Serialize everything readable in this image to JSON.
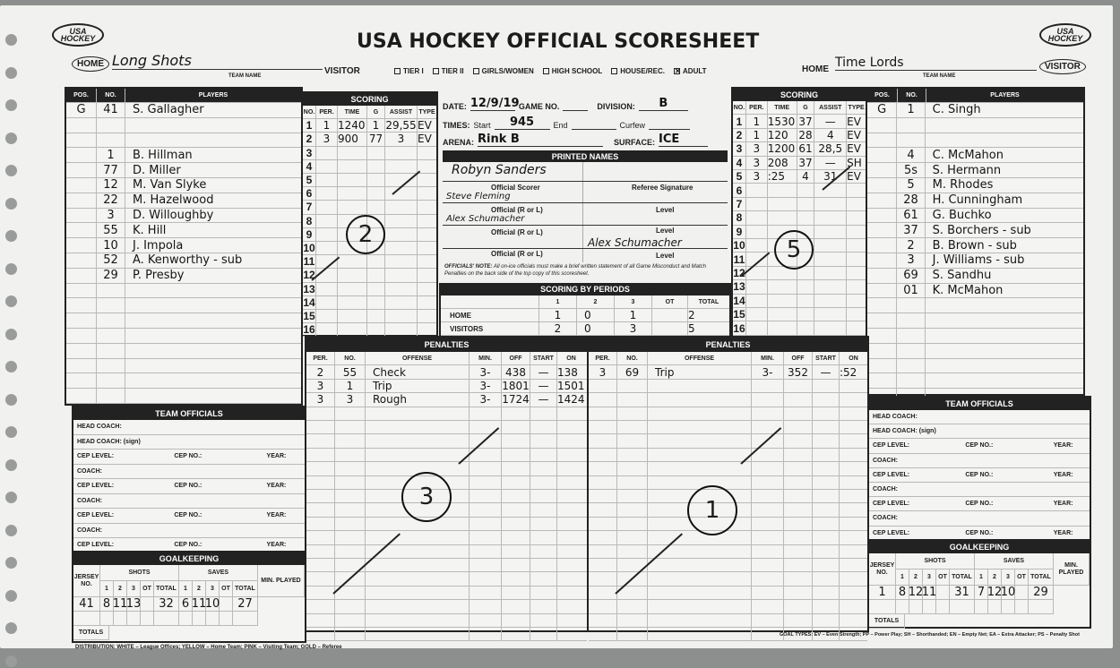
{
  "header": {
    "title": "USA HOCKEY OFFICIAL SCORESHEET",
    "logo": "USA HOCKEY",
    "home_label": "HOME",
    "visitor_label": "VISITOR",
    "team_name_label": "TEAM NAME",
    "left_team_name": "Long Shots",
    "right_team_name": "Time Lords",
    "left_circled": "HOME",
    "right_circled": "VISITOR",
    "checkboxes": [
      {
        "label": "TIER I",
        "checked": false
      },
      {
        "label": "TIER II",
        "checked": false
      },
      {
        "label": "GIRLS/WOMEN",
        "checked": false
      },
      {
        "label": "HIGH SCHOOL",
        "checked": false
      },
      {
        "label": "HOUSE/REC.",
        "checked": false
      },
      {
        "label": "ADULT",
        "checked": true
      }
    ]
  },
  "game_info": {
    "date_label": "DATE:",
    "date": "12/9/19",
    "game_no_label": "GAME NO.",
    "game_no": "",
    "division_label": "DIVISION:",
    "division": "B",
    "times_label": "TIMES:",
    "start_label": "Start",
    "start": "945",
    "end_label": "End",
    "end": "",
    "curfew_label": "Curfew",
    "curfew": "",
    "arena_label": "ARENA:",
    "arena": "Rink B",
    "surface_label": "SURFACE:",
    "surface": "ICE"
  },
  "printed_names": {
    "title": "PRINTED NAMES",
    "official_scorer_label": "Official Scorer",
    "official_scorer": "Robyn Sanders",
    "referee_signature_label": "Referee Signature",
    "official_label": "Official (R or L)",
    "level_label": "Level",
    "officials": [
      "Steve Fleming",
      "Alex Schumacher",
      ""
    ],
    "signature": "Alex Schumacher",
    "note_label": "OFFICIALS' NOTE:",
    "note": "All on-ice officials must make a brief written statement of all Game Misconduct and Match Penalties on the back side of the top copy of this scoresheet."
  },
  "scoring_by_periods": {
    "title": "SCORING BY PERIODS",
    "columns": [
      "",
      "1",
      "2",
      "3",
      "OT",
      "TOTAL"
    ],
    "rows": [
      [
        "HOME",
        "1",
        "0",
        "1",
        "",
        "2"
      ],
      [
        "VISITORS",
        "2",
        "0",
        "3",
        "",
        "5"
      ]
    ]
  },
  "players_headers": [
    "POS.",
    "NO.",
    "PLAYERS"
  ],
  "scoring_headers": [
    "NO.",
    "PER.",
    "TIME",
    "G",
    "ASSIST",
    "TYPE"
  ],
  "penalty_headers": [
    "PER.",
    "NO.",
    "OFFENSE",
    "MIN.",
    "OFF",
    "START",
    "ON"
  ],
  "scoring_title": "SCORING",
  "penalties_title": "PENALTIES",
  "team_officials_title": "TEAM OFFICIALS",
  "goalkeeping_title": "GOALKEEPING",
  "team_officials_rows": [
    [
      "HEAD COACH:"
    ],
    [
      "HEAD COACH: (sign)"
    ],
    [
      "CEP LEVEL:",
      "CEP NO.:",
      "YEAR:"
    ],
    [
      "COACH:"
    ],
    [
      "CEP LEVEL:",
      "CEP NO.:",
      "YEAR:"
    ],
    [
      "COACH:"
    ],
    [
      "CEP LEVEL:",
      "CEP NO.:",
      "YEAR:"
    ],
    [
      "COACH:"
    ],
    [
      "CEP LEVEL:",
      "CEP NO.:",
      "YEAR:"
    ]
  ],
  "goalkeeping_labels": {
    "jersey": "JERSEY NO.",
    "shots": "SHOTS",
    "saves": "SAVES",
    "min_played": "MIN. PLAYED",
    "periods": [
      "1",
      "2",
      "3",
      "OT",
      "TOTAL"
    ],
    "totals": "TOTALS"
  },
  "home": {
    "players": [
      [
        "G",
        "41",
        "S. Gallagher"
      ],
      [
        "",
        "",
        ""
      ],
      [
        "",
        "",
        ""
      ],
      [
        "",
        "1",
        "B. Hillman"
      ],
      [
        "",
        "77",
        "D. Miller"
      ],
      [
        "",
        "12",
        "M. Van Slyke"
      ],
      [
        "",
        "22",
        "M. Hazelwood"
      ],
      [
        "",
        "3",
        "D. Willoughby"
      ],
      [
        "",
        "55",
        "K. Hill"
      ],
      [
        "",
        "10",
        "J. Impola"
      ],
      [
        "",
        "52",
        "A. Kenworthy - sub"
      ],
      [
        "",
        "29",
        "P. Presby"
      ]
    ],
    "scoring": [
      [
        "1",
        "1",
        "1240",
        "1",
        "29,55",
        "EV"
      ],
      [
        "2",
        "3",
        "900",
        "77",
        "3",
        "EV"
      ]
    ],
    "scoring_circled_total": "2",
    "penalties": [
      [
        "2",
        "55",
        "Check",
        "3-",
        "438",
        "—",
        "138"
      ],
      [
        "3",
        "1",
        "Trip",
        "3-",
        "1801",
        "—",
        "1501"
      ],
      [
        "3",
        "3",
        "Rough",
        "3-",
        "1724",
        "—",
        "1424"
      ]
    ],
    "penalties_circled_total": "3",
    "goalkeeping": [
      {
        "jersey": "41",
        "shots": [
          "8",
          "11",
          "13",
          "",
          "32"
        ],
        "saves": [
          "6",
          "11",
          "10",
          "",
          "27"
        ],
        "min": ""
      }
    ]
  },
  "visitor": {
    "players": [
      [
        "G",
        "1",
        "C. Singh"
      ],
      [
        "",
        "",
        ""
      ],
      [
        "",
        "",
        ""
      ],
      [
        "",
        "4",
        "C. McMahon"
      ],
      [
        "",
        "5s",
        "S. Hermann"
      ],
      [
        "",
        "5",
        "M. Rhodes"
      ],
      [
        "",
        "28",
        "H. Cunningham"
      ],
      [
        "",
        "61",
        "G. Buchko"
      ],
      [
        "",
        "37",
        "S. Borchers - sub"
      ],
      [
        "",
        "2",
        "B. Brown - sub"
      ],
      [
        "",
        "3",
        "J. Williams - sub"
      ],
      [
        "",
        "69",
        "S. Sandhu"
      ],
      [
        "",
        "01",
        "K. McMahon"
      ]
    ],
    "scoring": [
      [
        "1",
        "1",
        "1530",
        "37",
        "—",
        "EV"
      ],
      [
        "2",
        "1",
        "120",
        "28",
        "4",
        "EV"
      ],
      [
        "3",
        "3",
        "1200",
        "61",
        "28,5",
        "EV"
      ],
      [
        "4",
        "3",
        "208",
        "37",
        "—",
        "SH"
      ],
      [
        "5",
        "3",
        ":25",
        "4",
        "31",
        "EV"
      ]
    ],
    "scoring_circled_total": "5",
    "penalties": [
      [
        "3",
        "69",
        "Trip",
        "3-",
        "352",
        "—",
        ":52"
      ]
    ],
    "penalties_circled_total": "1",
    "goalkeeping": [
      {
        "jersey": "1",
        "shots": [
          "8",
          "12",
          "11",
          "",
          "31"
        ],
        "saves": [
          "7",
          "12",
          "10",
          "",
          "29"
        ],
        "min": ""
      }
    ]
  },
  "footer": {
    "distribution": "DISTRIBUTION: WHITE – League Offices; YELLOW – Home Team; PINK – Visiting Team; GOLD – Referee",
    "goal_types": "GOAL TYPES: EV – Even Strength; PP – Power Play; SH – Shorthanded; EN – Empty Net; EA – Extra Attacker; PS – Penalty Shot"
  }
}
